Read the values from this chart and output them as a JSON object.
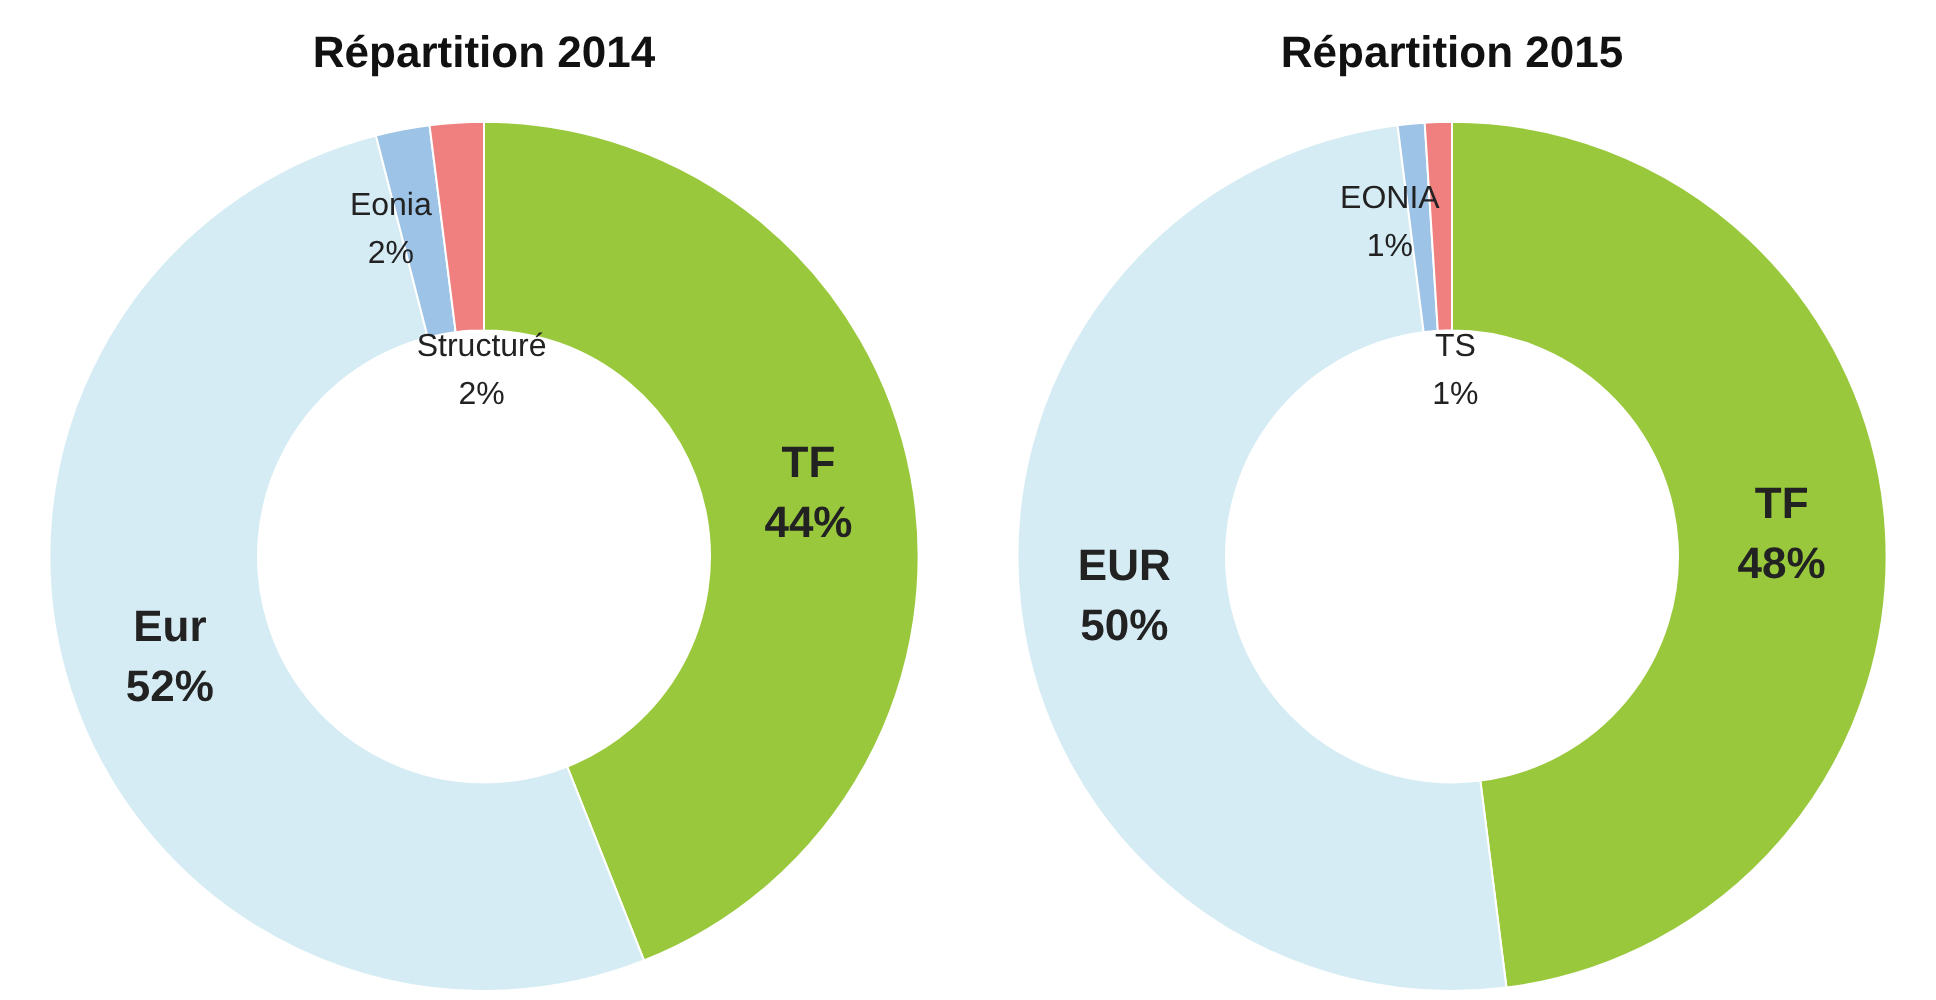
{
  "chart_data": [
    {
      "type": "donut",
      "title": "Répartition 2014",
      "categories": [
        "TF",
        "Eur",
        "Eonia",
        "Structuré"
      ],
      "values": [
        44,
        52,
        2,
        2
      ],
      "value_labels": [
        "44%",
        "52%",
        "2%",
        "2%"
      ],
      "colors": [
        "#99c83c",
        "#d5ecf4",
        "#9dc3e6",
        "#f08080"
      ],
      "legend": false
    },
    {
      "type": "donut",
      "title": "Répartition 2015",
      "categories": [
        "TF",
        "EUR",
        "EONIA",
        "TS"
      ],
      "values": [
        48,
        50,
        1,
        1
      ],
      "value_labels": [
        "48%",
        "50%",
        "1%",
        "1%"
      ],
      "colors": [
        "#99c83c",
        "#d5ecf4",
        "#9dc3e6",
        "#f08080"
      ],
      "legend": false
    }
  ]
}
